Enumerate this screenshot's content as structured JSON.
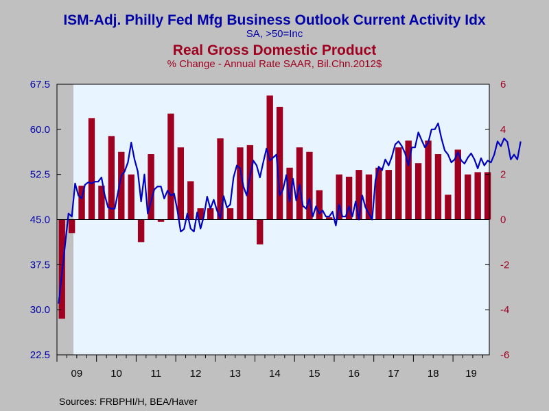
{
  "titles": {
    "line1": "ISM-Adj. Philly Fed Mfg Business Outlook Current Activity Idx",
    "line2": "SA, >50=Inc",
    "line3": "Real Gross Domestic Product",
    "line4": "% Change - Annual Rate     SAAR, Bil.Chn.2012$"
  },
  "source": "Sources:  FRBPHI/H, BEA/Haver",
  "colors": {
    "background": "#c0c0c0",
    "plot_area": "#e8f4ff",
    "line_series": "#0000c0",
    "bar_series": "#a00020",
    "recession_shade": "#c0c0c0",
    "left_axis_text": "#0000a8",
    "right_axis_text": "#a00020"
  },
  "chart_data": {
    "type": "bar+line",
    "x_range": [
      2009.0,
      2019.9167
    ],
    "x_tick_labels": [
      "09",
      "10",
      "11",
      "12",
      "13",
      "14",
      "15",
      "16",
      "17",
      "18",
      "19"
    ],
    "left_axis": {
      "ylim": [
        22.5,
        67.5
      ],
      "ticks": [
        "22.5",
        "30.0",
        "37.5",
        "45.0",
        "52.5",
        "60.0",
        "67.5"
      ]
    },
    "right_axis": {
      "ylim": [
        -6,
        6
      ],
      "ticks": [
        "-6",
        "-4",
        "-2",
        "0",
        "2",
        "4",
        "6"
      ]
    },
    "recession": [
      2009.0,
      2009.4167
    ],
    "grid": false,
    "legend": "none",
    "bars": {
      "axis": "right",
      "quarters": [
        "2009Q1",
        "2009Q2",
        "2009Q3",
        "2009Q4",
        "2010Q1",
        "2010Q2",
        "2010Q3",
        "2010Q4",
        "2011Q1",
        "2011Q2",
        "2011Q3",
        "2011Q4",
        "2012Q1",
        "2012Q2",
        "2012Q3",
        "2012Q4",
        "2013Q1",
        "2013Q2",
        "2013Q3",
        "2013Q4",
        "2014Q1",
        "2014Q2",
        "2014Q3",
        "2014Q4",
        "2015Q1",
        "2015Q2",
        "2015Q3",
        "2015Q4",
        "2016Q1",
        "2016Q2",
        "2016Q3",
        "2016Q4",
        "2017Q1",
        "2017Q2",
        "2017Q3",
        "2017Q4",
        "2018Q1",
        "2018Q2",
        "2018Q3",
        "2018Q4",
        "2019Q1",
        "2019Q2",
        "2019Q3",
        "2019Q4"
      ],
      "values": [
        -4.4,
        -0.6,
        1.5,
        4.5,
        1.5,
        3.7,
        3.0,
        2.0,
        -1.0,
        2.9,
        -0.1,
        4.7,
        3.2,
        1.7,
        0.5,
        0.5,
        3.6,
        0.5,
        3.2,
        3.3,
        -1.1,
        5.5,
        5.0,
        2.3,
        3.2,
        3.0,
        1.3,
        0.1,
        2.0,
        1.9,
        2.2,
        2.0,
        2.3,
        2.2,
        3.2,
        3.5,
        2.5,
        3.5,
        2.9,
        1.1,
        3.1,
        2.0,
        2.1,
        2.1
      ]
    },
    "line": {
      "axis": "left",
      "start": "2009-01",
      "values": [
        31.0,
        36.0,
        41.0,
        46.0,
        45.5,
        51.0,
        49.0,
        48.5,
        50.8,
        51.2,
        51.0,
        51.3,
        51.3,
        52.0,
        49.0,
        47.0,
        46.8,
        46.8,
        49.5,
        52.3,
        53.0,
        54.5,
        57.8,
        55.0,
        53.0,
        48.0,
        52.5,
        46.0,
        48.0,
        50.0,
        50.5,
        50.5,
        48.5,
        49.8,
        49.0,
        49.3,
        46.5,
        43.0,
        43.4,
        46.0,
        43.5,
        43.0,
        46.2,
        43.5,
        45.5,
        48.8,
        46.8,
        48.3,
        46.5,
        45.2,
        48.9,
        47.0,
        47.5,
        52.0,
        54.0,
        53.5,
        50.5,
        49.0,
        52.2,
        54.8,
        54.0,
        52.0,
        54.5,
        56.8,
        54.8,
        55.3,
        55.8,
        49.0,
        50.0,
        52.4,
        48.0,
        51.8,
        48.2,
        50.8,
        47.3,
        46.8,
        48.5,
        45.5,
        47.2,
        46.0,
        46.5,
        45.5,
        45.5,
        46.3,
        44.0,
        47.5,
        45.5,
        45.5,
        47.2,
        45.5,
        48.0,
        45.0,
        49.0,
        47.0,
        46.0,
        45.0,
        51.5,
        53.8,
        53.2,
        55.0,
        54.0,
        55.5,
        57.5,
        58.0,
        57.2,
        56.0,
        54.0,
        57.0,
        57.0,
        59.5,
        58.2,
        57.0,
        57.8,
        60.0,
        60.0,
        61.0,
        58.5,
        56.5,
        55.8,
        54.5,
        55.0,
        56.2,
        54.8,
        54.3,
        55.3,
        56.0,
        55.0,
        53.5,
        55.2,
        54.0,
        54.8,
        54.5,
        55.8,
        58.0,
        57.2,
        58.5,
        57.9,
        55.0,
        55.8,
        55.0,
        58.0
      ]
    }
  }
}
